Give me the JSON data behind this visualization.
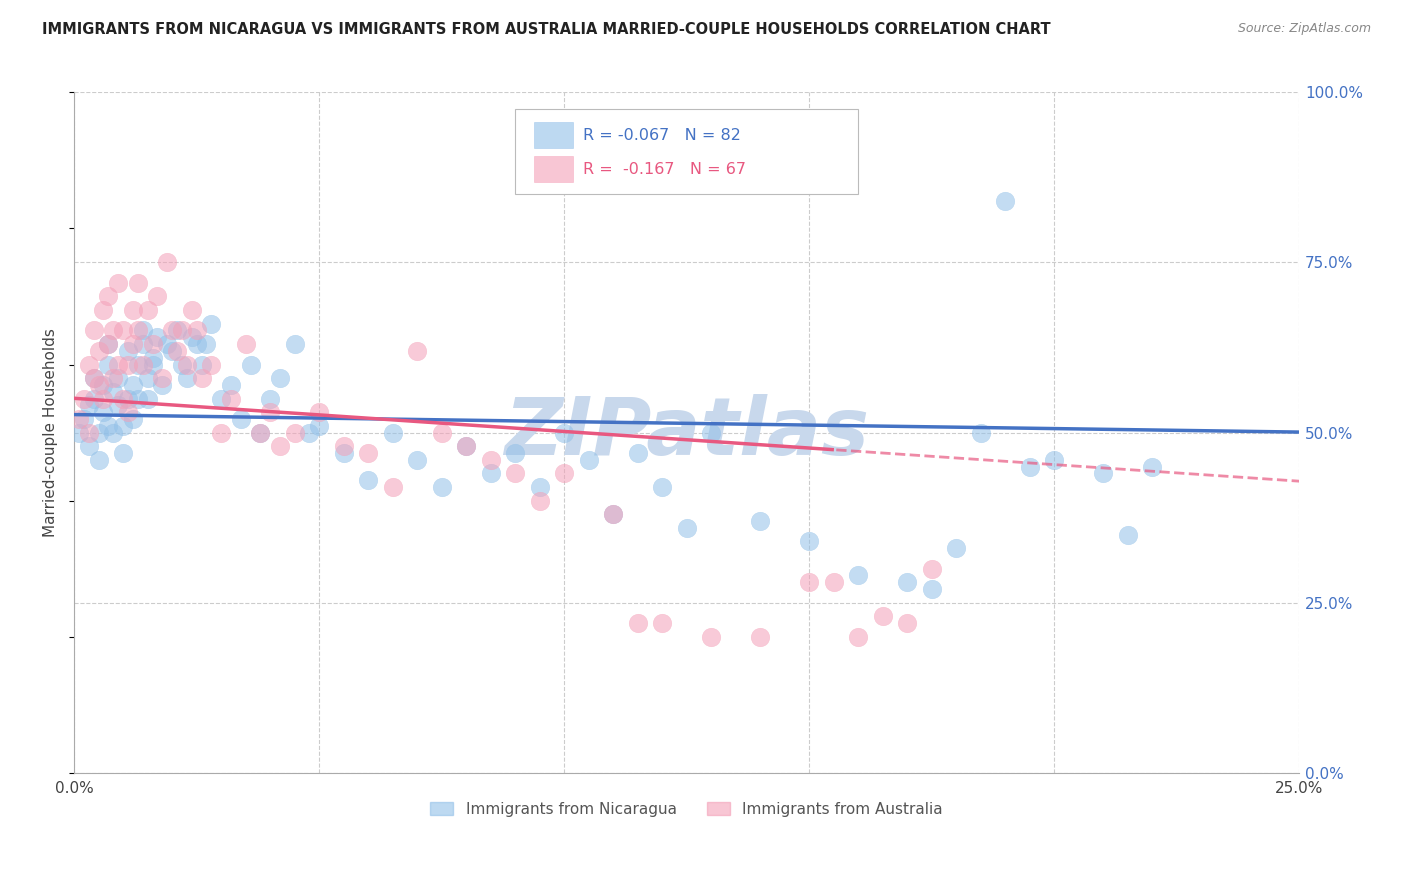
{
  "title": "IMMIGRANTS FROM NICARAGUA VS IMMIGRANTS FROM AUSTRALIA MARRIED-COUPLE HOUSEHOLDS CORRELATION CHART",
  "source_text": "Source: ZipAtlas.com",
  "ylabel": "Married-couple Households",
  "series1_label": "Immigrants from Nicaragua",
  "series2_label": "Immigrants from Australia",
  "color_blue": "#92C0E8",
  "color_pink": "#F4A0B8",
  "color_blue_line": "#4472C4",
  "color_pink_line": "#E85880",
  "color_blue_text": "#4472C4",
  "color_pink_text": "#E85880",
  "watermark_text": "ZIPatlas",
  "watermark_color": "#C8D8EC",
  "background_color": "#FFFFFF",
  "grid_color": "#CCCCCC",
  "r1": -0.067,
  "n1": 82,
  "r2": -0.167,
  "n2": 67,
  "xlim": [
    0.0,
    0.25
  ],
  "ylim": [
    0.0,
    1.0
  ],
  "nicaragua_x": [
    0.001,
    0.002,
    0.003,
    0.003,
    0.004,
    0.004,
    0.005,
    0.005,
    0.006,
    0.006,
    0.007,
    0.007,
    0.007,
    0.008,
    0.008,
    0.009,
    0.009,
    0.01,
    0.01,
    0.011,
    0.011,
    0.012,
    0.012,
    0.013,
    0.013,
    0.014,
    0.014,
    0.015,
    0.015,
    0.016,
    0.016,
    0.017,
    0.018,
    0.019,
    0.02,
    0.021,
    0.022,
    0.023,
    0.024,
    0.025,
    0.026,
    0.027,
    0.028,
    0.03,
    0.032,
    0.034,
    0.036,
    0.038,
    0.04,
    0.042,
    0.045,
    0.048,
    0.05,
    0.055,
    0.06,
    0.065,
    0.07,
    0.075,
    0.08,
    0.085,
    0.09,
    0.095,
    0.1,
    0.105,
    0.11,
    0.115,
    0.12,
    0.125,
    0.13,
    0.14,
    0.15,
    0.16,
    0.17,
    0.175,
    0.18,
    0.185,
    0.19,
    0.195,
    0.2,
    0.21,
    0.215,
    0.22
  ],
  "nicaragua_y": [
    0.5,
    0.52,
    0.54,
    0.48,
    0.55,
    0.58,
    0.5,
    0.46,
    0.53,
    0.57,
    0.51,
    0.6,
    0.63,
    0.56,
    0.5,
    0.54,
    0.58,
    0.51,
    0.47,
    0.55,
    0.62,
    0.57,
    0.52,
    0.6,
    0.55,
    0.65,
    0.63,
    0.58,
    0.55,
    0.61,
    0.6,
    0.64,
    0.57,
    0.63,
    0.62,
    0.65,
    0.6,
    0.58,
    0.64,
    0.63,
    0.6,
    0.63,
    0.66,
    0.55,
    0.57,
    0.52,
    0.6,
    0.5,
    0.55,
    0.58,
    0.63,
    0.5,
    0.51,
    0.47,
    0.43,
    0.5,
    0.46,
    0.42,
    0.48,
    0.44,
    0.47,
    0.42,
    0.5,
    0.46,
    0.38,
    0.47,
    0.42,
    0.36,
    0.5,
    0.37,
    0.34,
    0.29,
    0.28,
    0.27,
    0.33,
    0.5,
    0.84,
    0.45,
    0.46,
    0.44,
    0.35,
    0.45
  ],
  "australia_x": [
    0.001,
    0.002,
    0.003,
    0.003,
    0.004,
    0.004,
    0.005,
    0.005,
    0.006,
    0.006,
    0.007,
    0.007,
    0.008,
    0.008,
    0.009,
    0.009,
    0.01,
    0.01,
    0.011,
    0.011,
    0.012,
    0.012,
    0.013,
    0.013,
    0.014,
    0.015,
    0.016,
    0.017,
    0.018,
    0.019,
    0.02,
    0.021,
    0.022,
    0.023,
    0.024,
    0.025,
    0.026,
    0.028,
    0.03,
    0.032,
    0.035,
    0.038,
    0.04,
    0.042,
    0.045,
    0.05,
    0.055,
    0.06,
    0.065,
    0.07,
    0.075,
    0.08,
    0.085,
    0.09,
    0.095,
    0.1,
    0.11,
    0.115,
    0.12,
    0.13,
    0.14,
    0.15,
    0.155,
    0.16,
    0.165,
    0.17,
    0.175
  ],
  "australia_y": [
    0.52,
    0.55,
    0.6,
    0.5,
    0.65,
    0.58,
    0.57,
    0.62,
    0.55,
    0.68,
    0.63,
    0.7,
    0.65,
    0.58,
    0.72,
    0.6,
    0.65,
    0.55,
    0.6,
    0.53,
    0.68,
    0.63,
    0.72,
    0.65,
    0.6,
    0.68,
    0.63,
    0.7,
    0.58,
    0.75,
    0.65,
    0.62,
    0.65,
    0.6,
    0.68,
    0.65,
    0.58,
    0.6,
    0.5,
    0.55,
    0.63,
    0.5,
    0.53,
    0.48,
    0.5,
    0.53,
    0.48,
    0.47,
    0.42,
    0.62,
    0.5,
    0.48,
    0.46,
    0.44,
    0.4,
    0.44,
    0.38,
    0.22,
    0.22,
    0.2,
    0.2,
    0.28,
    0.28,
    0.2,
    0.23,
    0.22,
    0.3
  ]
}
